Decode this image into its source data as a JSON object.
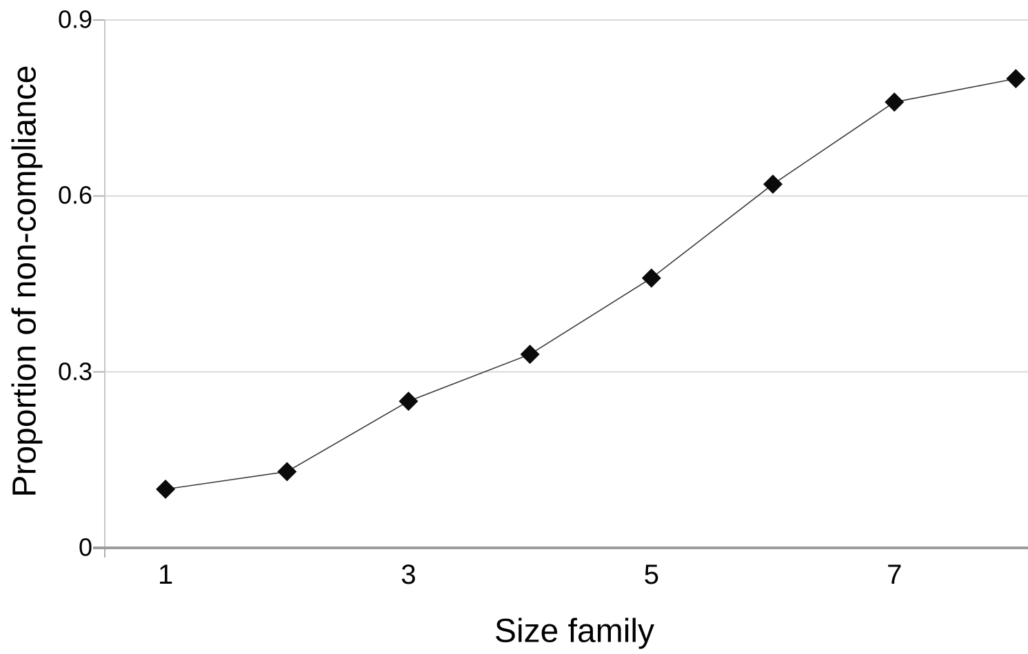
{
  "chart_data": {
    "type": "line",
    "title": "",
    "xlabel": "Size family",
    "ylabel": "Proportion of non-compliance",
    "x": [
      1,
      2,
      3,
      4,
      5,
      6,
      7,
      8
    ],
    "series": [
      {
        "name": "Proportion of non-compliance",
        "values": [
          0.1,
          0.13,
          0.25,
          0.33,
          0.46,
          0.62,
          0.76,
          0.8
        ]
      }
    ],
    "xticks": [
      1,
      3,
      5,
      7
    ],
    "xtick_labels": [
      "1",
      "3",
      "5",
      "7"
    ],
    "yticks": [
      0,
      0.3,
      0.6,
      0.9
    ],
    "ytick_labels": [
      "0",
      "0.3",
      "0.6",
      "0.9"
    ],
    "xlim": [
      0.5,
      8.1
    ],
    "ylim": [
      0,
      0.9
    ],
    "grid": "horizontal",
    "legend_position": "none",
    "marker": "diamond",
    "colors": {
      "line": "#3a3a3a",
      "marker": "#0b0b0b",
      "gridline": "#d9d9d9",
      "y_axis_line": "#c6c6c6",
      "x_axis_line": "#9c9c9c",
      "tick_mark": "#b0b0b0",
      "text": "#000000",
      "background": "#ffffff"
    }
  }
}
